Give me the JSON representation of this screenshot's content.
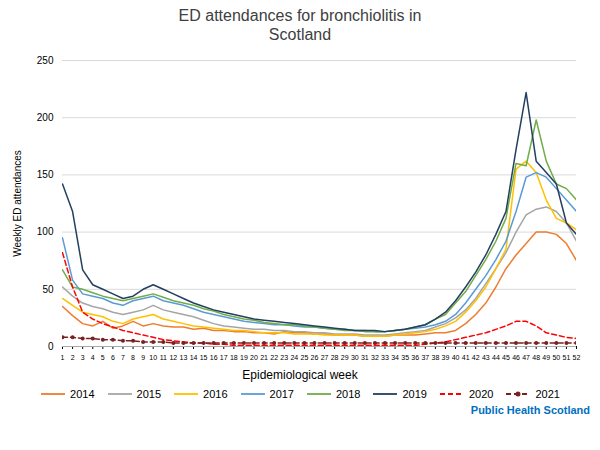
{
  "chart_data": {
    "type": "line",
    "title": "ED attendances for bronchiolitis in\nScotland",
    "xlabel": "Epidemiological week",
    "ylabel": "Weekly ED attendances",
    "x": [
      1,
      2,
      3,
      4,
      5,
      6,
      7,
      8,
      9,
      10,
      11,
      12,
      13,
      14,
      15,
      16,
      17,
      18,
      19,
      20,
      21,
      22,
      23,
      24,
      25,
      26,
      27,
      28,
      29,
      30,
      31,
      32,
      33,
      34,
      35,
      36,
      37,
      38,
      39,
      40,
      41,
      42,
      43,
      44,
      45,
      46,
      47,
      48,
      49,
      50,
      51,
      52
    ],
    "series": [
      {
        "name": "2014",
        "color": "#ED7D31",
        "line_style": "solid",
        "values": [
          35,
          27,
          20,
          18,
          22,
          16,
          18,
          22,
          18,
          20,
          18,
          17,
          17,
          15,
          16,
          14,
          14,
          13,
          13,
          12,
          12,
          11,
          13,
          12,
          12,
          11,
          11,
          10,
          10,
          10,
          9,
          9,
          9,
          10,
          10,
          10,
          11,
          12,
          12,
          14,
          20,
          28,
          38,
          52,
          68,
          80,
          90,
          100,
          100,
          98,
          90,
          75
        ]
      },
      {
        "name": "2015",
        "color": "#A5A5A5",
        "line_style": "solid",
        "values": [
          52,
          44,
          38,
          35,
          33,
          30,
          28,
          30,
          32,
          36,
          32,
          30,
          28,
          26,
          23,
          20,
          18,
          17,
          16,
          15,
          15,
          14,
          14,
          13,
          13,
          12,
          12,
          11,
          11,
          11,
          10,
          10,
          10,
          11,
          12,
          13,
          14,
          17,
          20,
          25,
          32,
          42,
          55,
          68,
          82,
          100,
          115,
          120,
          122,
          118,
          108,
          92
        ]
      },
      {
        "name": "2016",
        "color": "#FFC000",
        "line_style": "solid",
        "values": [
          42,
          36,
          30,
          28,
          26,
          22,
          20,
          24,
          26,
          28,
          24,
          22,
          20,
          18,
          17,
          16,
          15,
          14,
          14,
          13,
          12,
          12,
          12,
          11,
          11,
          11,
          10,
          10,
          10,
          10,
          9,
          9,
          9,
          10,
          11,
          12,
          13,
          15,
          18,
          22,
          30,
          40,
          52,
          68,
          85,
          155,
          162,
          152,
          128,
          112,
          108,
          102
        ]
      },
      {
        "name": "2017",
        "color": "#5B9BD5",
        "line_style": "solid",
        "values": [
          95,
          58,
          46,
          44,
          42,
          38,
          36,
          40,
          42,
          44,
          40,
          38,
          36,
          33,
          30,
          28,
          26,
          24,
          22,
          21,
          20,
          19,
          19,
          18,
          17,
          17,
          16,
          15,
          15,
          14,
          14,
          13,
          13,
          14,
          15,
          16,
          17,
          19,
          22,
          28,
          38,
          50,
          62,
          76,
          92,
          118,
          148,
          152,
          148,
          138,
          128,
          118
        ]
      },
      {
        "name": "2018",
        "color": "#70AD47",
        "line_style": "solid",
        "values": [
          67,
          52,
          50,
          47,
          44,
          42,
          40,
          42,
          44,
          46,
          43,
          40,
          38,
          36,
          33,
          31,
          28,
          26,
          24,
          23,
          21,
          20,
          19,
          19,
          18,
          17,
          16,
          15,
          14,
          14,
          13,
          13,
          13,
          14,
          15,
          17,
          19,
          24,
          28,
          38,
          48,
          62,
          76,
          92,
          112,
          160,
          158,
          198,
          162,
          142,
          138,
          128
        ]
      },
      {
        "name": "2019",
        "color": "#243F60",
        "line_style": "solid",
        "values": [
          142,
          118,
          67,
          54,
          50,
          46,
          42,
          44,
          50,
          54,
          50,
          46,
          42,
          38,
          35,
          32,
          30,
          28,
          26,
          24,
          23,
          22,
          21,
          20,
          19,
          18,
          17,
          16,
          15,
          14,
          14,
          14,
          13,
          14,
          15,
          17,
          19,
          24,
          30,
          40,
          52,
          65,
          80,
          98,
          118,
          172,
          222,
          162,
          152,
          142,
          108,
          98
        ]
      },
      {
        "name": "2020",
        "color": "#FF0000",
        "line_style": "dashed",
        "values": [
          82,
          52,
          30,
          24,
          20,
          17,
          14,
          12,
          10,
          8,
          6,
          5,
          4,
          3,
          3,
          2,
          2,
          1,
          1,
          1,
          1,
          1,
          1,
          1,
          1,
          1,
          1,
          1,
          1,
          1,
          1,
          1,
          1,
          1,
          1,
          1,
          2,
          3,
          4,
          6,
          8,
          10,
          12,
          15,
          18,
          22,
          22,
          18,
          12,
          10,
          8,
          7
        ]
      },
      {
        "name": "2021",
        "color": "#7B2020",
        "line_style": "dashed",
        "marker": "o",
        "values": [
          8,
          8,
          7,
          7,
          6,
          6,
          5,
          5,
          4,
          4,
          4,
          3,
          3,
          3,
          3,
          3,
          3,
          3,
          3,
          3,
          3,
          3,
          3,
          3,
          3,
          3,
          3,
          3,
          3,
          3,
          3,
          3,
          3,
          3,
          3,
          3,
          3,
          3,
          3,
          3,
          3,
          3,
          3,
          3,
          3,
          3,
          3,
          3,
          3,
          3,
          3,
          3
        ]
      }
    ],
    "xlim": [
      1,
      52
    ],
    "xticks": [
      1,
      2,
      3,
      4,
      5,
      6,
      7,
      8,
      9,
      10,
      11,
      12,
      13,
      14,
      15,
      16,
      17,
      18,
      19,
      20,
      21,
      22,
      23,
      24,
      25,
      26,
      27,
      28,
      29,
      30,
      31,
      32,
      33,
      34,
      35,
      36,
      37,
      38,
      39,
      40,
      41,
      42,
      43,
      44,
      45,
      46,
      47,
      48,
      49,
      50,
      51,
      52
    ],
    "ylim": [
      0,
      250
    ],
    "yticks": [
      0,
      50,
      100,
      150,
      200,
      250
    ],
    "grid": "y",
    "legend": "bottom",
    "annotations": [
      {
        "text": "Public Health Scotland",
        "color": "#0070C0"
      }
    ]
  }
}
